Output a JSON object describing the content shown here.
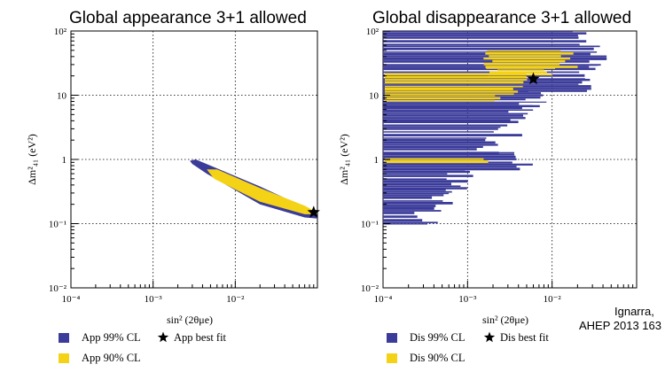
{
  "chart_data": [
    {
      "type": "scatter",
      "title": "Global appearance 3+1 allowed",
      "xlabel": "sin² (2θμe)",
      "ylabel": "Δm²₄₁ (eV²)",
      "xscale": "log",
      "yscale": "log",
      "xlim": [
        0.0001,
        0.1
      ],
      "ylim": [
        0.01,
        100
      ],
      "x_tick_labels": [
        "10⁻⁴",
        "10⁻³",
        "10⁻²"
      ],
      "y_tick_labels": [
        "10⁻²",
        "10⁻¹",
        "1",
        "10",
        "10²"
      ],
      "grid": true,
      "legend_position": "bottom",
      "series": [
        {
          "name": "App 99% CL",
          "color": "#3b3b9a",
          "region": {
            "x": [
              0.0028,
              0.095
            ],
            "y": [
              0.12,
              1.0
            ]
          }
        },
        {
          "name": "App 90% CL",
          "color": "#f4d316",
          "region": {
            "x": [
              0.0045,
              0.09
            ],
            "y": [
              0.14,
              0.7
            ]
          }
        },
        {
          "name": "App best fit",
          "marker": "star",
          "x": 0.09,
          "y": 0.15
        }
      ],
      "legend": [
        {
          "label": "App 99% CL",
          "color": "#3b3b9a",
          "symbol": "square"
        },
        {
          "label": "App best fit",
          "color": "#000000",
          "symbol": "star"
        },
        {
          "label": "App 90% CL",
          "color": "#f4d316",
          "symbol": "square"
        }
      ]
    },
    {
      "type": "scatter",
      "title": "Global disappearance 3+1 allowed",
      "xlabel": "sin² (2θμe)",
      "ylabel": "Δm²₄₁ (eV²)",
      "xscale": "log",
      "yscale": "log",
      "xlim": [
        0.0001,
        0.1
      ],
      "ylim": [
        0.01,
        100
      ],
      "x_tick_labels": [
        "10⁻⁴",
        "10⁻³",
        "10⁻²"
      ],
      "y_tick_labels": [
        "10⁻²",
        "10⁻¹",
        "1",
        "10",
        "10²"
      ],
      "grid": true,
      "legend_position": "bottom",
      "series": [
        {
          "name": "Dis 99% CL",
          "color": "#3b3b9a",
          "region": {
            "x": [
              0.0001,
              0.04
            ],
            "y": [
              0.1,
              100
            ]
          }
        },
        {
          "name": "Dis 90% CL",
          "color": "#f4d316",
          "region": {
            "x": [
              0.0001,
              0.015
            ],
            "y": [
              0.9,
              40
            ]
          }
        },
        {
          "name": "Dis best fit",
          "marker": "star",
          "x": 0.006,
          "y": 18
        }
      ],
      "legend": [
        {
          "label": "Dis 99% CL",
          "color": "#3b3b9a",
          "symbol": "square"
        },
        {
          "label": "Dis best fit",
          "color": "#000000",
          "symbol": "star"
        },
        {
          "label": "Dis 90% CL",
          "color": "#f4d316",
          "symbol": "square"
        }
      ]
    }
  ],
  "credit": {
    "line1": "Ignarra, ",
    "line2": "AHEP 2013 163"
  }
}
